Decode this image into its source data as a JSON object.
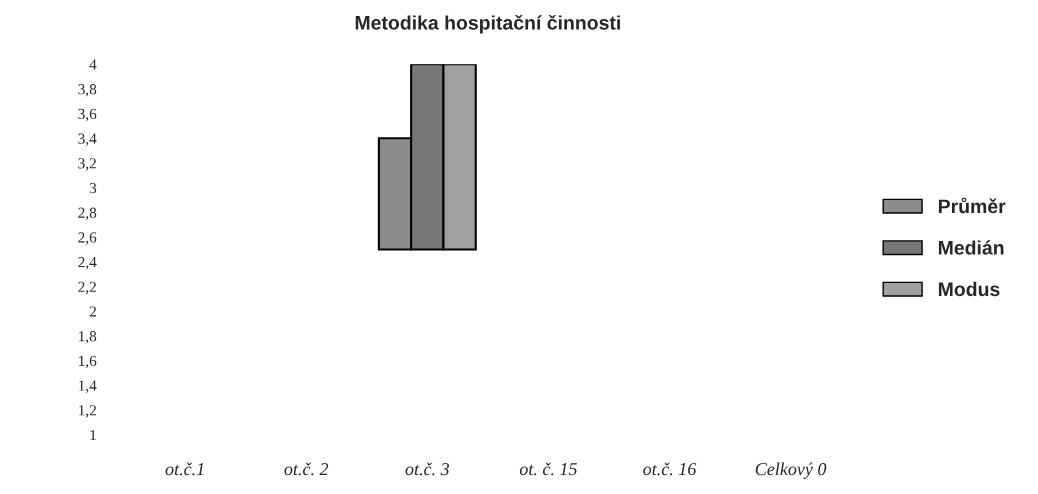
{
  "chart_data": {
    "type": "bar",
    "title": "Metodika hospitační činnosti",
    "categories": [
      "ot.č.1",
      "ot.č. 2",
      "ot.č. 3",
      "ot. č. 15",
      "ot.č. 16",
      "Celkový 0"
    ],
    "series": [
      {
        "name": "Průměr",
        "color": "#8c8c8c",
        "values": [
          null,
          null,
          0.9,
          null,
          null,
          null
        ],
        "base": [
          null,
          null,
          2.5,
          null,
          null,
          null
        ]
      },
      {
        "name": "Medián",
        "color": "#777777",
        "values": [
          null,
          null,
          1.5,
          null,
          null,
          null
        ],
        "base": [
          null,
          null,
          2.5,
          null,
          null,
          null
        ]
      },
      {
        "name": "Modus",
        "color": "#a0a0a0",
        "values": [
          null,
          null,
          1.5,
          null,
          null,
          null
        ],
        "base": [
          null,
          null,
          2.5,
          null,
          null,
          null
        ]
      }
    ],
    "ylim": [
      1,
      4
    ],
    "yticks": [
      {
        "value": 1,
        "label": "1"
      },
      {
        "value": 1.2,
        "label": "1,2"
      },
      {
        "value": 1.4,
        "label": "1,4"
      },
      {
        "value": 1.6,
        "label": "1,6"
      },
      {
        "value": 1.8,
        "label": "1,8"
      },
      {
        "value": 2,
        "label": "2"
      },
      {
        "value": 2.2,
        "label": "2,2"
      },
      {
        "value": 2.4,
        "label": "2,4"
      },
      {
        "value": 2.6,
        "label": "2,6"
      },
      {
        "value": 2.8,
        "label": "2,8"
      },
      {
        "value": 3,
        "label": "3"
      },
      {
        "value": 3.2,
        "label": "3,2"
      },
      {
        "value": 3.4,
        "label": "3,4"
      },
      {
        "value": 3.6,
        "label": "3,6"
      },
      {
        "value": 3.8,
        "label": "3,8"
      },
      {
        "value": 4,
        "label": "4"
      }
    ],
    "grid": false,
    "legend": "right"
  }
}
